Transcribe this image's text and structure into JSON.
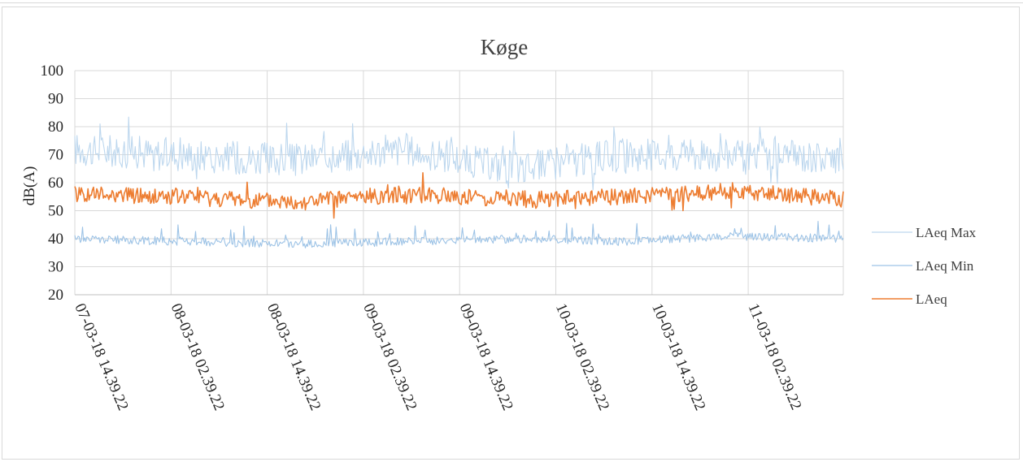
{
  "chart_data": {
    "type": "line",
    "title": "Køge",
    "xlabel": "",
    "ylabel": "dB(A)",
    "ylim": [
      20,
      100
    ],
    "yticks": [
      20,
      30,
      40,
      50,
      60,
      70,
      80,
      90,
      100
    ],
    "x": [
      "07-03-18 14.39.22",
      "08-03-18 02.39.22",
      "08-03-18 14.39.22",
      "09-03-18 02.39.22",
      "09-03-18 14.39.22",
      "10-03-18 02.39.22",
      "10-03-18 14.39.22",
      "11-03-18 02.39.22"
    ],
    "grid": true,
    "legend_position": "right",
    "series": [
      {
        "name": "LAeq Max",
        "color": "#bdd7ee",
        "values": [
          72,
          70,
          68,
          72,
          65,
          70,
          70,
          69
        ]
      },
      {
        "name": "LAeq Min",
        "color": "#9dc3e6",
        "values": [
          40,
          39,
          38,
          39,
          40,
          39,
          41,
          40
        ]
      },
      {
        "name": "LAeq",
        "color": "#ed7d31",
        "values": [
          56,
          55,
          53,
          56,
          54,
          55,
          57,
          54
        ]
      }
    ]
  }
}
